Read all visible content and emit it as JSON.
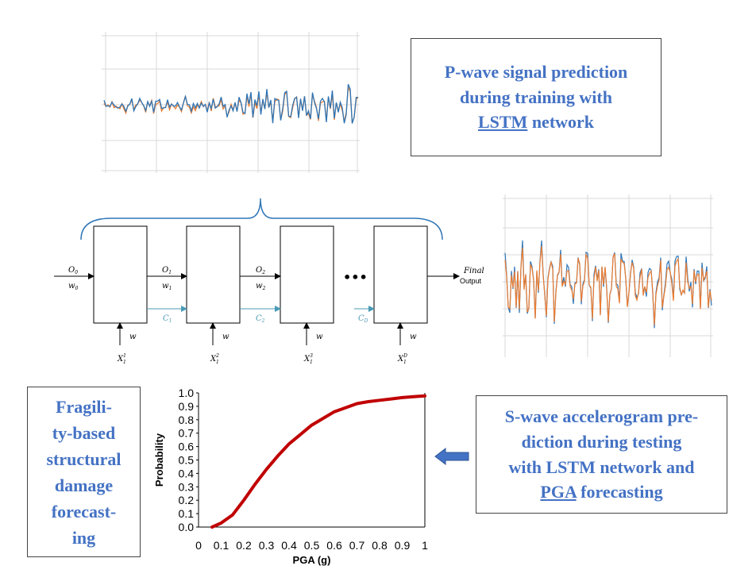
{
  "ptext": {
    "line1": "P-wave signal prediction",
    "line2": "during training with",
    "line3_link": "LSTM",
    "line3_rest": " network"
  },
  "ftext": {
    "lines": [
      "Fragili-",
      "ty-based",
      "structural",
      "damage",
      "forecast-",
      "ing"
    ]
  },
  "stext": {
    "line1": "S-wave accelerogram pre-",
    "line2": "diction during testing",
    "line3": "with LSTM network and",
    "line4_link": "PGA",
    "line4_rest": " forecasting"
  },
  "lstm": {
    "inputs": [
      {
        "o": "O",
        "osub": "0",
        "w": "w",
        "wsub": "0"
      },
      {
        "o": "O",
        "osub": "1",
        "w": "w",
        "wsub": "1"
      },
      {
        "o": "O",
        "osub": "2",
        "w": "w",
        "wsub": "2"
      }
    ],
    "cell_states": [
      {
        "c": "C",
        "sub": "1"
      },
      {
        "c": "C",
        "sub": "2"
      },
      {
        "c": "C",
        "sub": "D"
      }
    ],
    "bottom_w": [
      "w",
      "w",
      "w",
      "w"
    ],
    "x_inputs": [
      {
        "x": "X",
        "sub": "1",
        "sup": "1"
      },
      {
        "x": "X",
        "sub": "1",
        "sup": "2"
      },
      {
        "x": "X",
        "sub": "1",
        "sup": "3"
      },
      {
        "x": "X",
        "sub": "1",
        "sup": "D"
      }
    ],
    "ellipsis": "•••",
    "final_line1": "Final",
    "final_line2": "Output"
  },
  "colors": {
    "accent_blue": "#4472C4",
    "signal_blue": "#2E75B6",
    "signal_orange": "#ED7D31",
    "curve_red": "#C00000",
    "cell_state_teal": "#4A9BB5",
    "arrow_fill": "#4472C4"
  },
  "chart_data": {
    "type": "line",
    "title": "",
    "xlabel": "PGA (g)",
    "ylabel": "Probability",
    "xlim": [
      0,
      1
    ],
    "ylim": [
      0,
      1
    ],
    "xticks": [
      "0",
      "0.1",
      "0.2",
      "0.3",
      "0.4",
      "0.5",
      "0.6",
      "0.7",
      "0.8",
      "0.9",
      "1"
    ],
    "yticks": [
      "0.0",
      "0.1",
      "0.2",
      "0.3",
      "0.4",
      "0.5",
      "0.6",
      "0.7",
      "0.8",
      "0.9",
      "1.0"
    ],
    "series": [
      {
        "name": "Fragility",
        "x": [
          0.06,
          0.1,
          0.15,
          0.2,
          0.25,
          0.3,
          0.35,
          0.4,
          0.45,
          0.5,
          0.55,
          0.6,
          0.65,
          0.7,
          0.75,
          0.8,
          0.85,
          0.9,
          0.95,
          1.0
        ],
        "values": [
          0.0,
          0.03,
          0.09,
          0.2,
          0.32,
          0.43,
          0.53,
          0.62,
          0.69,
          0.76,
          0.81,
          0.86,
          0.89,
          0.92,
          0.935,
          0.945,
          0.955,
          0.965,
          0.972,
          0.978
        ]
      }
    ]
  }
}
